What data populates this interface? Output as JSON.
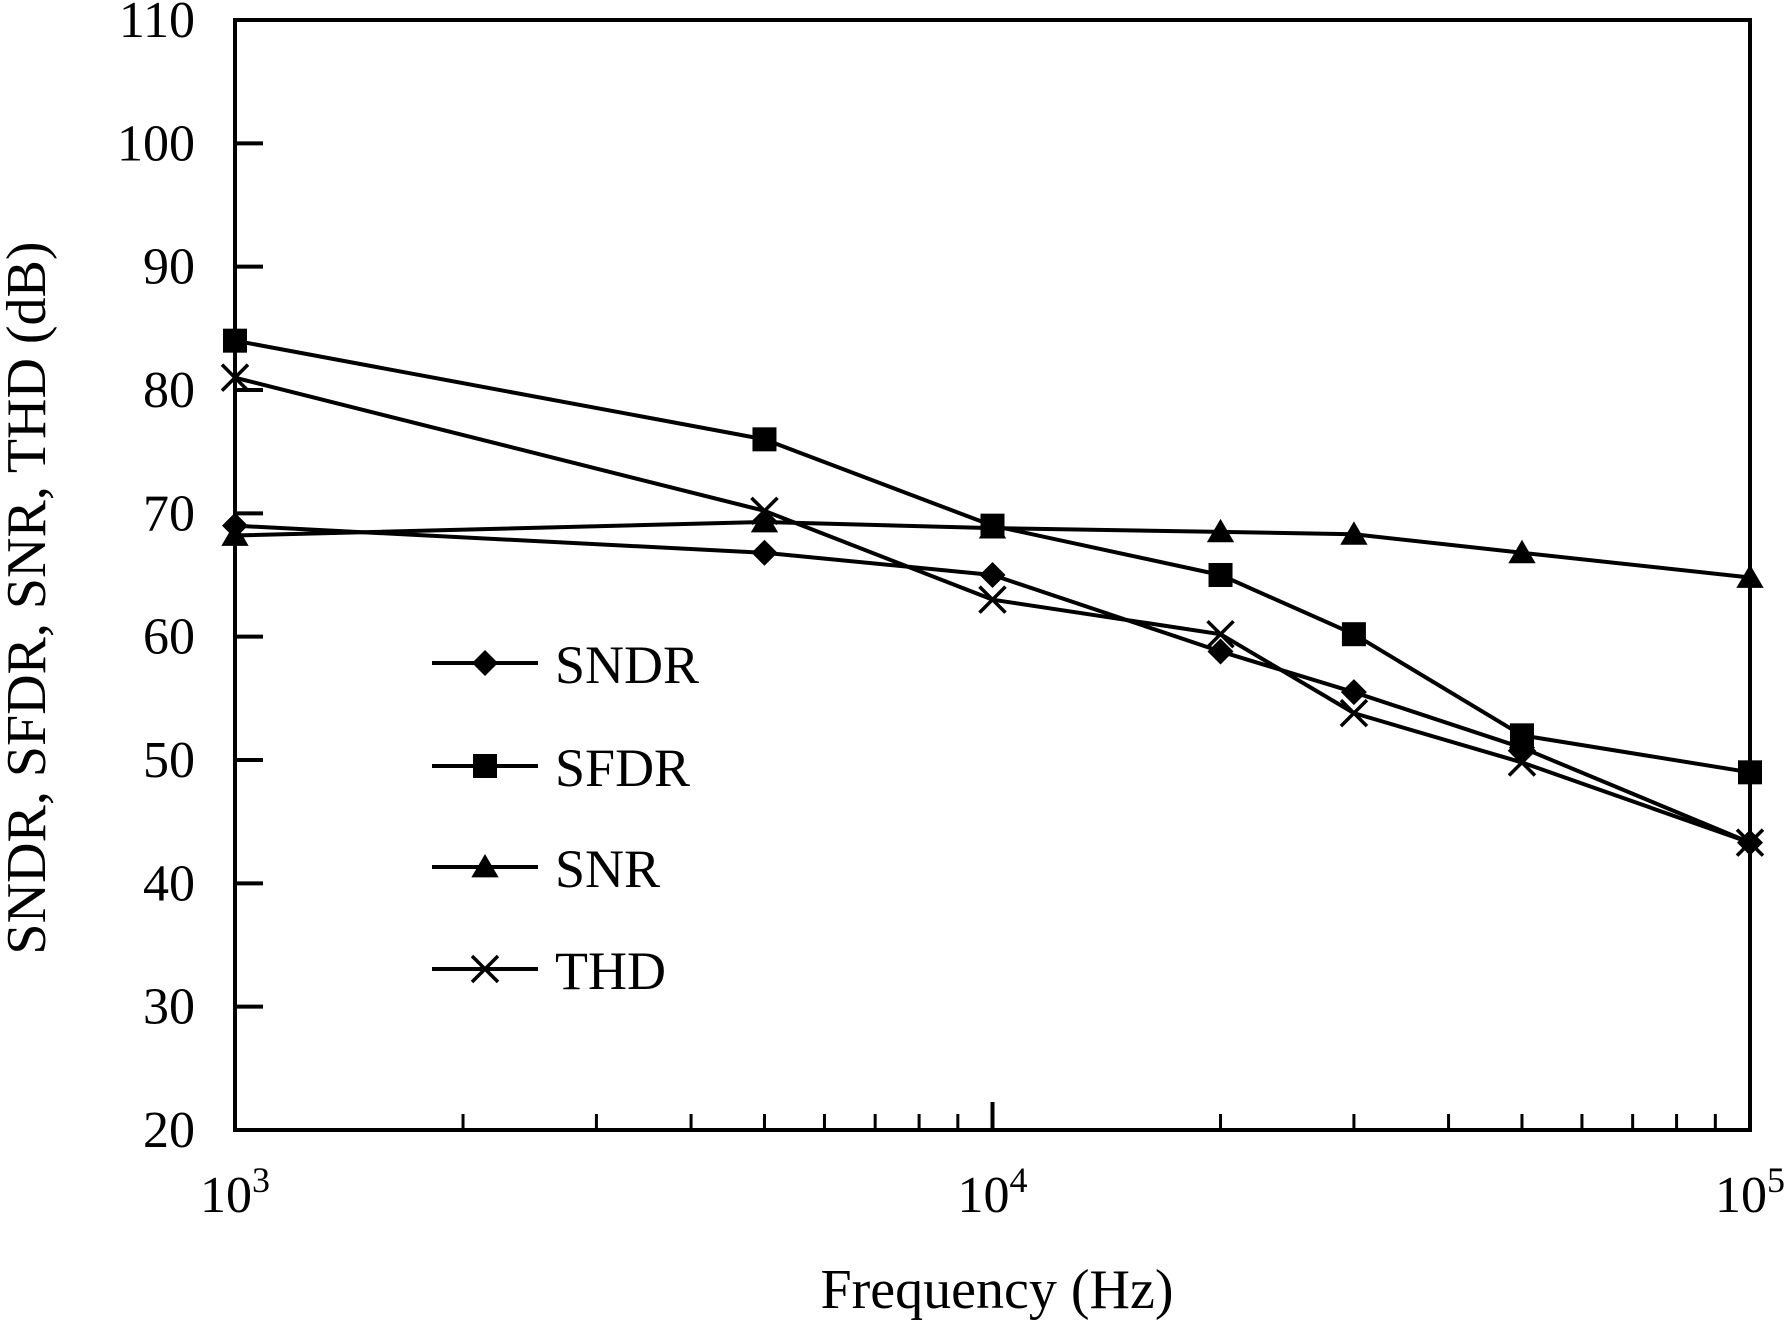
{
  "chart_data": {
    "type": "line",
    "title": "",
    "xlabel": "Frequency (Hz)",
    "ylabel": "SNDR, SFDR, SNR, THD (dB)",
    "xscale": "log",
    "xlim": [
      1000,
      100000
    ],
    "ylim": [
      20,
      110
    ],
    "yticks": [
      20,
      30,
      40,
      50,
      60,
      70,
      80,
      90,
      100,
      110
    ],
    "xticks": [
      {
        "value": 1000,
        "base": "10",
        "exp": "3"
      },
      {
        "value": 10000,
        "base": "10",
        "exp": "4"
      },
      {
        "value": 100000,
        "base": "10",
        "exp": "5"
      }
    ],
    "legend_position": "middle-left",
    "colors": {
      "line": "#000000",
      "background": "#ffffff"
    },
    "series": [
      {
        "name": "SNDR",
        "marker": "diamond",
        "x": [
          1000,
          5000,
          10000,
          20000,
          30000,
          50000,
          100000
        ],
        "values": [
          69,
          66.8,
          65,
          58.8,
          55.5,
          51,
          43.3
        ]
      },
      {
        "name": "SFDR",
        "marker": "square",
        "x": [
          1000,
          5000,
          10000,
          20000,
          30000,
          50000,
          100000
        ],
        "values": [
          84,
          76,
          69,
          65,
          60.2,
          52,
          49
        ]
      },
      {
        "name": "SNR",
        "marker": "triangle",
        "x": [
          1000,
          5000,
          10000,
          20000,
          30000,
          50000,
          100000
        ],
        "values": [
          68.2,
          69.3,
          68.8,
          68.5,
          68.3,
          66.8,
          64.8
        ]
      },
      {
        "name": "THD",
        "marker": "x",
        "x": [
          1000,
          5000,
          10000,
          20000,
          30000,
          50000,
          100000
        ],
        "values": [
          81,
          70.2,
          63,
          60.2,
          53.8,
          49.8,
          43.3
        ]
      }
    ]
  }
}
